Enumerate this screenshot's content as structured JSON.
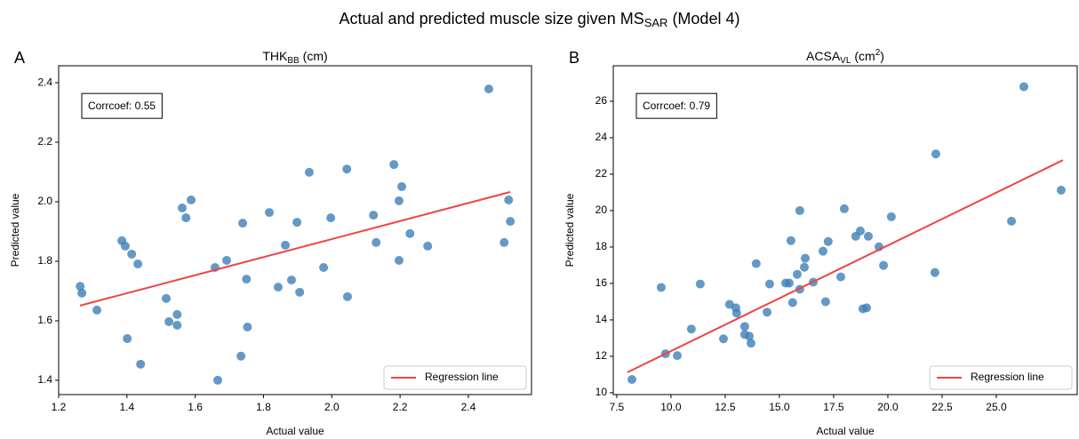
{
  "title": {
    "text": "Actual and predicted muscle size given MS",
    "subscript": "SAR",
    "suffix": "(Model 4)"
  },
  "chart_data": [
    {
      "type": "scatter",
      "panel_label": "A",
      "title": {
        "text": "THK",
        "subscript": "BB",
        "suffix": "(cm)"
      },
      "xlabel": "Actual value",
      "ylabel": "Predicted value",
      "annotation": "Corrcoef: 0.55",
      "xlim": [
        1.2,
        2.585
      ],
      "ylim": [
        1.352,
        2.457
      ],
      "xticks": [
        1.2,
        1.4,
        1.6,
        1.8,
        {
          "value": 2,
          "label": "2.0"
        },
        2.2,
        2.4
      ],
      "yticks": [
        1.4,
        1.6,
        1.8,
        {
          "value": 2,
          "label": "2.0"
        },
        2.2,
        2.4
      ],
      "grid": false,
      "legend": "lower right",
      "series": [
        {
          "color": "#3d7fb8",
          "x": [
            1.263,
            1.268,
            1.312,
            1.385,
            1.395,
            1.414,
            1.432,
            1.401,
            1.44,
            1.515,
            1.523,
            1.547,
            1.547,
            1.562,
            1.573,
            1.588,
            1.658,
            1.692,
            1.666,
            1.739,
            1.75,
            1.753,
            1.734,
            1.817,
            1.843,
            1.864,
            1.882,
            1.898,
            1.906,
            1.934,
            1.976,
            1.997,
            2.044,
            2.046,
            2.122,
            2.13,
            2.182,
            2.197,
            2.205,
            2.197,
            2.229,
            2.281,
            2.46,
            2.518,
            2.523,
            2.505
          ],
          "values": [
            1.716,
            1.693,
            1.636,
            1.869,
            1.851,
            1.824,
            1.791,
            1.54,
            1.454,
            1.675,
            1.597,
            1.621,
            1.585,
            1.979,
            1.946,
            2.006,
            1.779,
            1.803,
            1.4,
            1.928,
            1.74,
            1.579,
            1.481,
            1.964,
            1.713,
            1.854,
            1.737,
            1.931,
            1.696,
            2.099,
            1.779,
            1.946,
            2.11,
            1.681,
            1.955,
            1.863,
            2.125,
            2.003,
            2.051,
            1.803,
            1.893,
            1.851,
            2.379,
            2.006,
            1.934,
            1.863
          ]
        },
        {
          "name": "Regression line",
          "type": "line",
          "color": "#ef4444",
          "x": [
            1.2625,
            2.523
          ],
          "values": [
            1.651,
            2.033
          ]
        }
      ]
    },
    {
      "type": "scatter",
      "panel_label": "B",
      "title": {
        "text": "ACSA",
        "subscript": "VL",
        "suffix": "(cm",
        "superscript": "2",
        "suffix2": ")"
      },
      "xlabel": "Actual value",
      "ylabel": "Predicted value",
      "annotation": "Corrcoef: 0.79",
      "xlim": [
        7.34,
        28.73
      ],
      "ylim": [
        9.9,
        27.95
      ],
      "xticks": [
        7.5,
        {
          "value": 10,
          "label": "10.0"
        },
        12.5,
        {
          "value": 15,
          "label": "15.0"
        },
        17.5,
        {
          "value": 20,
          "label": "20.0"
        },
        22.5,
        {
          "value": 25,
          "label": "25.0"
        }
      ],
      "yticks": [
        10,
        12,
        14,
        16,
        18,
        20,
        22,
        24,
        26
      ],
      "grid": false,
      "legend": "lower right",
      "series": [
        {
          "color": "#3d7fb8",
          "x": [
            8.2,
            9.55,
            9.75,
            10.29,
            10.94,
            11.35,
            12.42,
            12.7,
            12.99,
            13.03,
            13.4,
            13.4,
            13.61,
            13.69,
            13.93,
            14.43,
            14.55,
            15.29,
            15.45,
            15.53,
            15.61,
            15.82,
            15.94,
            15.94,
            16.15,
            16.19,
            16.56,
            17.01,
            17.13,
            17.25,
            17.83,
            17.99,
            18.52,
            18.73,
            19.02,
            18.85,
            19.1,
            19.59,
            19.8,
            20.16,
            22.21,
            22.17,
            25.7,
            26.27,
            27.99
          ],
          "values": [
            10.73,
            15.78,
            12.14,
            12.04,
            13.5,
            15.97,
            12.96,
            14.85,
            14.66,
            14.37,
            13.64,
            13.2,
            13.11,
            12.72,
            17.09,
            14.42,
            15.97,
            16.02,
            16.02,
            18.35,
            14.95,
            16.5,
            20.0,
            15.68,
            16.89,
            17.38,
            16.07,
            17.77,
            15.0,
            18.3,
            16.36,
            20.1,
            18.59,
            18.88,
            14.66,
            14.61,
            18.59,
            18.01,
            16.99,
            19.66,
            23.11,
            16.6,
            19.42,
            26.8,
            21.12
          ]
        },
        {
          "name": "Regression line",
          "type": "line",
          "color": "#ef4444",
          "x": [
            7.99,
            28.07
          ],
          "values": [
            11.12,
            22.77
          ]
        }
      ]
    }
  ]
}
